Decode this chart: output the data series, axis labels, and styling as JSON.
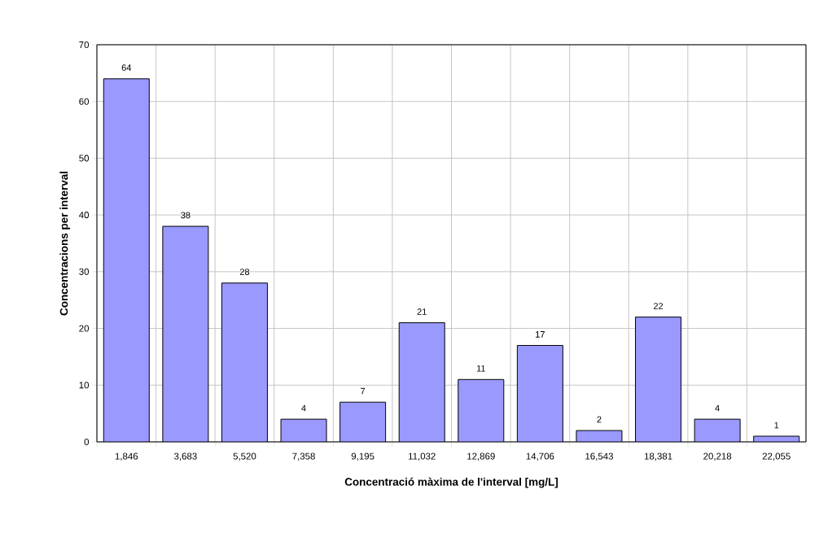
{
  "chart_data": {
    "type": "bar",
    "xlabel": "Concentració màxima de l'interval [mg/L]",
    "ylabel": "Concentracions per interval",
    "categories": [
      "1,846",
      "3,683",
      "5,520",
      "7,358",
      "9,195",
      "11,032",
      "12,869",
      "14,706",
      "16,543",
      "18,381",
      "20,218",
      "22,055"
    ],
    "values": [
      64,
      38,
      28,
      4,
      7,
      21,
      11,
      17,
      2,
      22,
      4,
      1
    ],
    "color": "#9999ff",
    "ylim": [
      0,
      70
    ],
    "yticks": [
      0,
      10,
      20,
      30,
      40,
      50,
      60,
      70
    ],
    "grid": true,
    "data_labels": true
  }
}
